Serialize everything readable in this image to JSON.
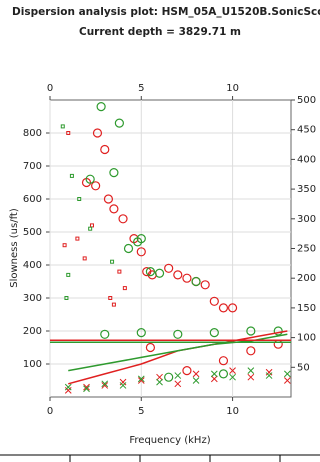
{
  "chart_data": {
    "type": "scatter",
    "title": "Dispersion analysis plot: HSM_05A_U1520B.SonicScope",
    "subtitle": "Current depth  = 3829.71 m",
    "x_label": "Frequency (kHz)",
    "y_label": "Slowness (us/ft)",
    "xlim": [
      0,
      13.2
    ],
    "xticks": [
      0,
      5,
      10
    ],
    "ylim": [
      0,
      900
    ],
    "yticks": [
      100,
      200,
      300,
      400,
      500,
      600,
      700,
      800
    ],
    "y2lim": [
      0,
      500
    ],
    "y2ticks": [
      50,
      100,
      150,
      200,
      250,
      300,
      350,
      400,
      450,
      500
    ],
    "grid": true,
    "series": [
      {
        "marker": "circle",
        "color": "#e02020",
        "x": [
          2.6,
          3.0,
          2.0,
          2.5,
          3.2,
          3.5,
          4.0,
          4.6,
          5.0,
          5.3,
          5.6,
          6.5,
          7.0,
          7.5,
          8.0,
          8.5,
          9.0,
          9.5,
          10.0,
          5.5,
          7.5,
          9.5,
          11.0,
          12.5
        ],
        "values": [
          800,
          750,
          650,
          640,
          600,
          570,
          540,
          480,
          440,
          380,
          370,
          390,
          370,
          360,
          350,
          340,
          290,
          270,
          270,
          150,
          80,
          110,
          140,
          160
        ]
      },
      {
        "marker": "circle",
        "color": "#2e9a2e",
        "x": [
          2.8,
          3.8,
          3.5,
          2.2,
          4.3,
          4.8,
          5.0,
          5.5,
          6.0,
          8.0,
          3.0,
          5.0,
          7.0,
          9.0,
          11.0,
          12.5,
          6.5,
          9.5
        ],
        "values": [
          880,
          830,
          680,
          660,
          450,
          470,
          480,
          380,
          375,
          350,
          190,
          195,
          190,
          195,
          200,
          200,
          60,
          70
        ]
      },
      {
        "marker": "square",
        "color": "#e02020",
        "x": [
          1.0,
          1.5,
          1.9,
          2.3,
          3.5,
          3.3,
          3.8,
          4.1,
          0.8
        ],
        "values": [
          800,
          480,
          420,
          520,
          280,
          300,
          380,
          330,
          460
        ]
      },
      {
        "marker": "square",
        "color": "#2e9a2e",
        "x": [
          0.7,
          1.2,
          1.6,
          2.2,
          3.4,
          1.0,
          0.9
        ],
        "values": [
          820,
          670,
          600,
          510,
          410,
          370,
          300
        ]
      },
      {
        "marker": "x",
        "color": "#e02020",
        "x": [
          1,
          2,
          3,
          4,
          5,
          6,
          7,
          8,
          9,
          10,
          11,
          12,
          13
        ],
        "values": [
          20,
          30,
          35,
          45,
          50,
          60,
          40,
          70,
          55,
          80,
          60,
          75,
          50
        ]
      },
      {
        "marker": "x",
        "color": "#2e9a2e",
        "x": [
          1,
          2,
          3,
          4,
          5,
          6,
          7,
          8,
          9,
          10,
          11,
          12,
          13
        ],
        "values": [
          30,
          25,
          40,
          35,
          55,
          45,
          65,
          50,
          70,
          60,
          80,
          65,
          70
        ]
      },
      {
        "marker": "line",
        "color": "#e02020",
        "x": [
          1,
          3,
          5,
          7,
          9,
          11,
          13
        ],
        "values": [
          40,
          70,
          100,
          140,
          160,
          180,
          200
        ]
      },
      {
        "marker": "line",
        "color": "#2e9a2e",
        "x": [
          1,
          3,
          5,
          7,
          9,
          11,
          13
        ],
        "values": [
          80,
          100,
          120,
          140,
          160,
          170,
          190
        ]
      },
      {
        "marker": "line",
        "color": "#e02020",
        "x": [
          0,
          13.2
        ],
        "values": [
          172,
          172
        ]
      },
      {
        "marker": "line",
        "color": "#2e9a2e",
        "x": [
          0,
          13.2
        ],
        "values": [
          166,
          166
        ]
      }
    ]
  }
}
